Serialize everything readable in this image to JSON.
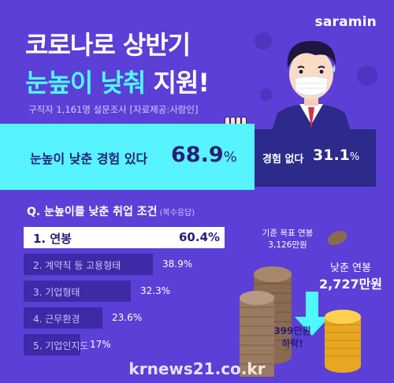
{
  "brand": {
    "logo": "saramin"
  },
  "title": {
    "line1": "코로나로 상반기",
    "line2_highlight": "눈높이 낮춰",
    "line2_rest": "지원!"
  },
  "survey_note": "구직자 1,161명 설문조사 [자료제공:사람인]",
  "stats": {
    "lowered": {
      "label": "눈높이 낮춘 경험 있다",
      "value": "68.9",
      "unit": "%"
    },
    "not_lowered": {
      "label": "경험 없다",
      "value": "31.1",
      "unit": "%"
    }
  },
  "question": {
    "text": "Q. 눈높이를 낮춘 취업 조건",
    "note": "(복수응답)"
  },
  "conditions": [
    {
      "label": "1. 연봉",
      "value": "60.4%"
    },
    {
      "label": "2. 계약직 등 고용형태",
      "value": "38.9%"
    },
    {
      "label": "3. 기업형태",
      "value": "32.3%"
    },
    {
      "label": "4. 근무환경",
      "value": "23.6%"
    },
    {
      "label": "5. 기업인지도",
      "value": "17%"
    }
  ],
  "salary": {
    "prev_label": "기준 목표 연봉",
    "prev_value": "3,126만원",
    "now_label": "낮춘 연봉",
    "now_value": "2,727만원",
    "drop_value": "399만원",
    "drop_label": "하락!"
  },
  "watermark": "krnews21.co.kr",
  "colors": {
    "background": "#5b3fd6",
    "accent": "#4ff7ff",
    "dark": "#2c2a8a",
    "text_dark": "#2b1d78"
  },
  "chart_data": {
    "type": "bar",
    "title": "Q. 눈높이를 낮춘 취업 조건",
    "categories": [
      "연봉",
      "계약직 등 고용형태",
      "기업형태",
      "근무환경",
      "기업인지도"
    ],
    "values": [
      60.4,
      38.9,
      32.3,
      23.6,
      17
    ],
    "unit": "%",
    "summary": [
      {
        "label": "눈높이 낮춘 경험 있다",
        "value": 68.9
      },
      {
        "label": "경험 없다",
        "value": 31.1
      }
    ],
    "salary": [
      {
        "label": "기준 목표 연봉",
        "value": 3126
      },
      {
        "label": "낮춘 연봉",
        "value": 2727
      }
    ],
    "salary_unit": "만원"
  }
}
